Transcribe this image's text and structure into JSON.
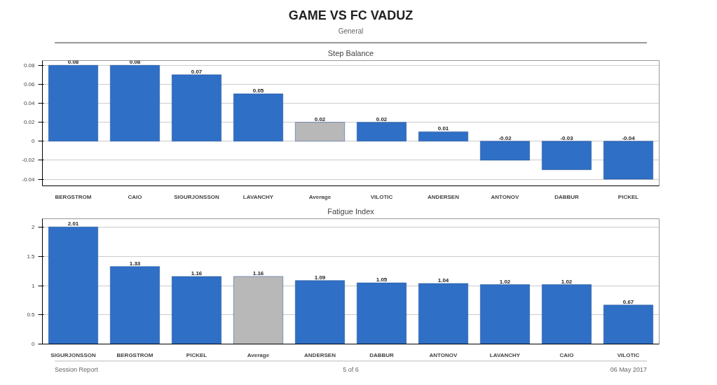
{
  "chart_data": [
    {
      "type": "other",
      "title": "GAME VS FC VADUZ",
      "subtitle": "General",
      "annotations": [
        "Session Report",
        "5 of 6",
        "06 May 2017"
      ]
    },
    {
      "type": "bar",
      "title": "Step Balance",
      "categories": [
        "BERGSTROM",
        "CAIO",
        "SIGURJONSSON",
        "LAVANCHY",
        "Average",
        "VILOTIC",
        "ANDERSEN",
        "ANTONOV",
        "DABBUR",
        "PICKEL"
      ],
      "values": [
        0.08,
        0.08,
        0.07,
        0.05,
        0.02,
        0.02,
        0.01,
        -0.02,
        -0.03,
        -0.04
      ],
      "colors": [
        "#2f6fc6",
        "#2f6fc6",
        "#2f6fc6",
        "#2f6fc6",
        "#b8b8b8",
        "#2f6fc6",
        "#2f6fc6",
        "#2f6fc6",
        "#2f6fc6",
        "#2f6fc6"
      ],
      "ylim": [
        -0.047,
        0.085
      ],
      "yticks": [
        {
          "value": -0.04,
          "label": "-0.04"
        },
        {
          "value": -0.02,
          "label": "-0.02"
        },
        0,
        {
          "value": 0.02,
          "label": "0.02"
        },
        {
          "value": 0.04,
          "label": "0.04"
        },
        {
          "value": 0.06,
          "label": "0.06"
        },
        {
          "value": 0.08,
          "label": "0.08"
        }
      ],
      "grid": "y",
      "data_labels": true
    },
    {
      "type": "bar",
      "title": "Fatigue Index",
      "categories": [
        "SIGURJONSSON",
        "BERGSTROM",
        "PICKEL",
        "Average",
        "ANDERSEN",
        "DABBUR",
        "ANTONOV",
        "LAVANCHY",
        "CAIO",
        "VILOTIC"
      ],
      "values": [
        2.01,
        1.33,
        1.16,
        1.16,
        1.09,
        1.05,
        1.04,
        1.02,
        1.02,
        0.67
      ],
      "colors": [
        "#2f6fc6",
        "#2f6fc6",
        "#2f6fc6",
        "#b8b8b8",
        "#2f6fc6",
        "#2f6fc6",
        "#2f6fc6",
        "#2f6fc6",
        "#2f6fc6",
        "#2f6fc6"
      ],
      "ylim": [
        0,
        2.15
      ],
      "yticks": [
        0,
        0.5,
        1,
        1.5,
        2
      ],
      "grid": "y",
      "data_labels": true
    }
  ]
}
